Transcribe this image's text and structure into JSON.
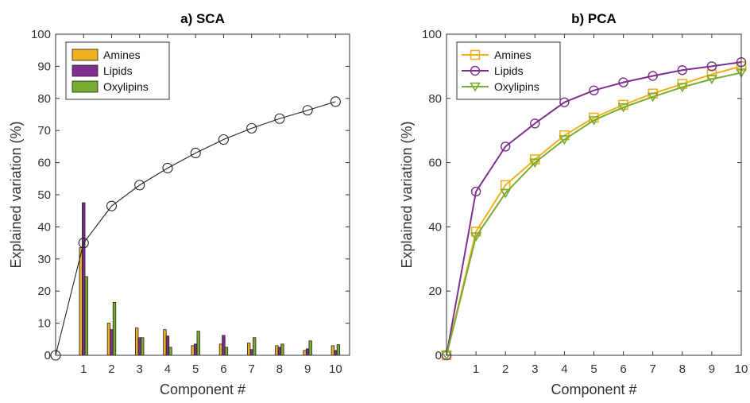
{
  "chart_data": [
    {
      "panel": "a",
      "type": "bar",
      "title": "a) SCA",
      "xlabel": "Component #",
      "ylabel": "Explained variation (%)",
      "categories": [
        1,
        2,
        3,
        4,
        5,
        6,
        7,
        8,
        9,
        10
      ],
      "xticks": [
        "1",
        "2",
        "3",
        "4",
        "5",
        "6",
        "7",
        "8",
        "9",
        "10"
      ],
      "yticks": [
        "0",
        "10",
        "20",
        "30",
        "40",
        "50",
        "60",
        "70",
        "80",
        "90",
        "100"
      ],
      "xlim": [
        0,
        10.5
      ],
      "ylim": [
        0,
        100
      ],
      "grid": false,
      "legend_position": "top-left",
      "series": [
        {
          "name": "Amines",
          "color": "#EDB120",
          "values": [
            33.5,
            10,
            8.5,
            8,
            3,
            3.5,
            3.8,
            3,
            1.5,
            3
          ]
        },
        {
          "name": "Lipids",
          "color": "#7E2F8E",
          "values": [
            47.5,
            8,
            5.5,
            6,
            3.5,
            6.2,
            1.8,
            2.5,
            2,
            1.5
          ]
        },
        {
          "name": "Oxylipins",
          "color": "#77AC30",
          "values": [
            24.5,
            16.5,
            5.5,
            2.5,
            7.5,
            2.5,
            5.5,
            3.5,
            4.5,
            3.3
          ]
        }
      ],
      "cumulative_line": {
        "x": [
          0,
          1,
          2,
          3,
          4,
          5,
          6,
          7,
          8,
          9,
          10
        ],
        "values": [
          0,
          35,
          46.5,
          53,
          58.3,
          63,
          67.2,
          70.7,
          73.7,
          76.3,
          79
        ],
        "color": "#222222",
        "marker": "circle"
      }
    },
    {
      "panel": "b",
      "type": "line",
      "title": "b) PCA",
      "xlabel": "Component #",
      "ylabel": "Explained variation (%)",
      "x": [
        0,
        1,
        2,
        3,
        4,
        5,
        6,
        7,
        8,
        9,
        10
      ],
      "xticks": [
        "1",
        "2",
        "3",
        "4",
        "5",
        "6",
        "7",
        "8",
        "9",
        "10"
      ],
      "yticks": [
        "0",
        "20",
        "40",
        "60",
        "80",
        "100"
      ],
      "xlim": [
        0,
        10
      ],
      "ylim": [
        0,
        100
      ],
      "grid": false,
      "legend_position": "top-left",
      "series": [
        {
          "name": "Amines",
          "color": "#EDB120",
          "marker": "square",
          "values": [
            0,
            38.5,
            53,
            61,
            68.5,
            74,
            78,
            81.5,
            84.5,
            87.5,
            90
          ]
        },
        {
          "name": "Lipids",
          "color": "#7E2F8E",
          "marker": "circle",
          "values": [
            0,
            51,
            65,
            72.2,
            78.8,
            82.5,
            85,
            87,
            88.8,
            90,
            91.3
          ]
        },
        {
          "name": "Oxylipins",
          "color": "#77AC30",
          "marker": "triangle-down",
          "values": [
            0,
            37,
            50.5,
            60,
            67.2,
            73.2,
            77.2,
            80.5,
            83.5,
            86,
            88
          ]
        }
      ]
    }
  ]
}
